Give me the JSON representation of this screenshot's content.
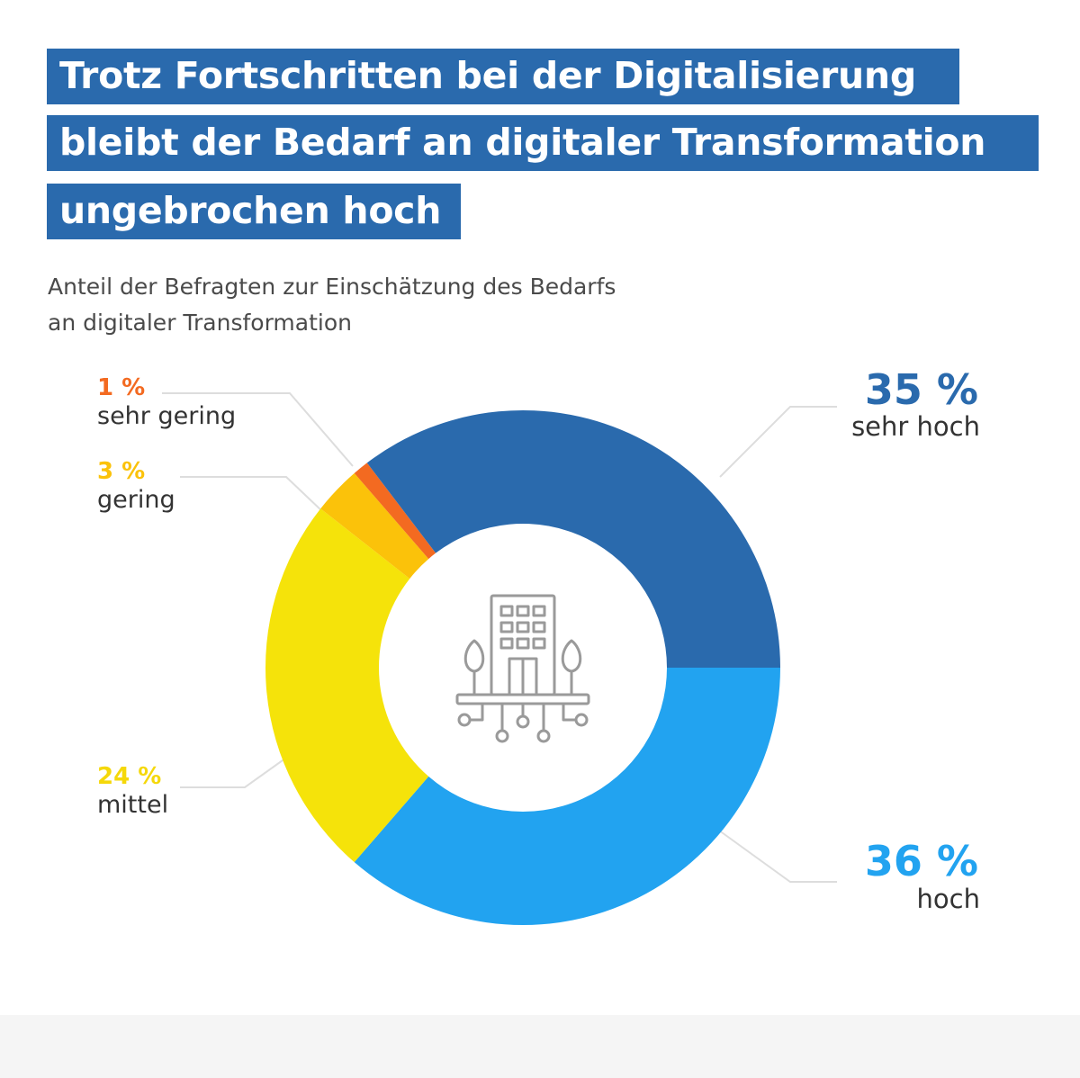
{
  "title": {
    "line1": "Trotz Fortschritten bei der Digitalisierung",
    "line2": "bleibt der Bedarf an digitaler Transformation",
    "line3": "ungebrochen hoch"
  },
  "subtitle": {
    "line1": "Anteil der Befragten zur Einschätzung des Bedarfs",
    "line2": "an digitaler Transformation"
  },
  "labels": {
    "sehr_gering": {
      "pct": "1 %",
      "text": "sehr gering"
    },
    "gering": {
      "pct": "3 %",
      "text": "gering"
    },
    "mittel": {
      "pct": "24 %",
      "text": "mittel"
    },
    "sehr_hoch": {
      "pct": "35 %",
      "text": "sehr hoch"
    },
    "hoch": {
      "pct": "36 %",
      "text": "hoch"
    }
  },
  "colors": {
    "title_bg": "#2a6aad",
    "sehr_hoch": "#2a6aad",
    "hoch": "#22a3f0",
    "mittel": "#f5e30a",
    "gering": "#fbc20a",
    "sehr_gering": "#f36a21",
    "icon": "#9a9a9a",
    "leader": "#dddddd"
  },
  "center_icon": "building-network-icon",
  "chart_data": {
    "type": "pie",
    "variant": "donut",
    "title": "Anteil der Befragten zur Einschätzung des Bedarfs an digitaler Transformation",
    "categories": [
      "sehr hoch",
      "hoch",
      "mittel",
      "gering",
      "sehr gering"
    ],
    "values": [
      35,
      36,
      24,
      3,
      1
    ],
    "unit": "%",
    "start": "clockwise from the right (3 o'clock) for 'hoch'"
  }
}
